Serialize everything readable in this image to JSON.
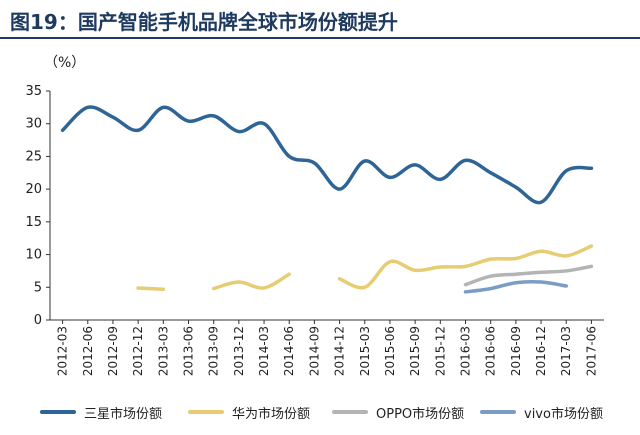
{
  "title": "图19：国产智能手机品牌全球市场份额提升",
  "unit_label": "（%）",
  "chart_data": {
    "type": "line",
    "title": "图19：国产智能手机品牌全球市场份额提升",
    "ylabel": "（%）",
    "xlabel": "",
    "ylim": [
      0,
      35
    ],
    "yticks": [
      0,
      5,
      10,
      15,
      20,
      25,
      30,
      35
    ],
    "grid": false,
    "legend_position": "bottom",
    "categories": [
      "2012-03",
      "2012-06",
      "2012-09",
      "2012-12",
      "2013-03",
      "2013-06",
      "2013-09",
      "2013-12",
      "2014-03",
      "2014-06",
      "2014-09",
      "2014-12",
      "2015-03",
      "2015-06",
      "2015-09",
      "2015-12",
      "2016-03",
      "2016-06",
      "2016-09",
      "2016-12",
      "2017-03",
      "2017-06"
    ],
    "series": [
      {
        "name": "三星市场份额",
        "color": "#2e6496",
        "values": [
          29.0,
          32.5,
          31.0,
          29.0,
          32.5,
          30.4,
          31.2,
          28.8,
          30.0,
          25.0,
          24.0,
          20.0,
          24.3,
          21.8,
          23.7,
          21.5,
          24.4,
          22.5,
          20.3,
          18.0,
          22.8,
          23.2
        ]
      },
      {
        "name": "华为市场份额",
        "color": "#e6cc72",
        "values": [
          null,
          null,
          null,
          4.9,
          4.7,
          null,
          4.8,
          5.8,
          4.9,
          7.0,
          null,
          6.3,
          5.0,
          8.9,
          7.6,
          8.1,
          8.2,
          9.3,
          9.4,
          10.5,
          9.8,
          11.3
        ]
      },
      {
        "name": "OPPO市场份额",
        "color": "#b4b4b4",
        "values": [
          null,
          null,
          null,
          null,
          null,
          null,
          null,
          null,
          null,
          null,
          null,
          null,
          null,
          null,
          null,
          null,
          5.4,
          6.7,
          7.0,
          7.3,
          7.5,
          8.2
        ]
      },
      {
        "name": "vivo市场份额",
        "color": "#7b9cc5",
        "values": [
          null,
          null,
          null,
          null,
          null,
          null,
          null,
          null,
          null,
          null,
          null,
          null,
          null,
          null,
          null,
          null,
          4.3,
          4.8,
          5.7,
          5.8,
          5.2,
          null
        ]
      }
    ]
  }
}
